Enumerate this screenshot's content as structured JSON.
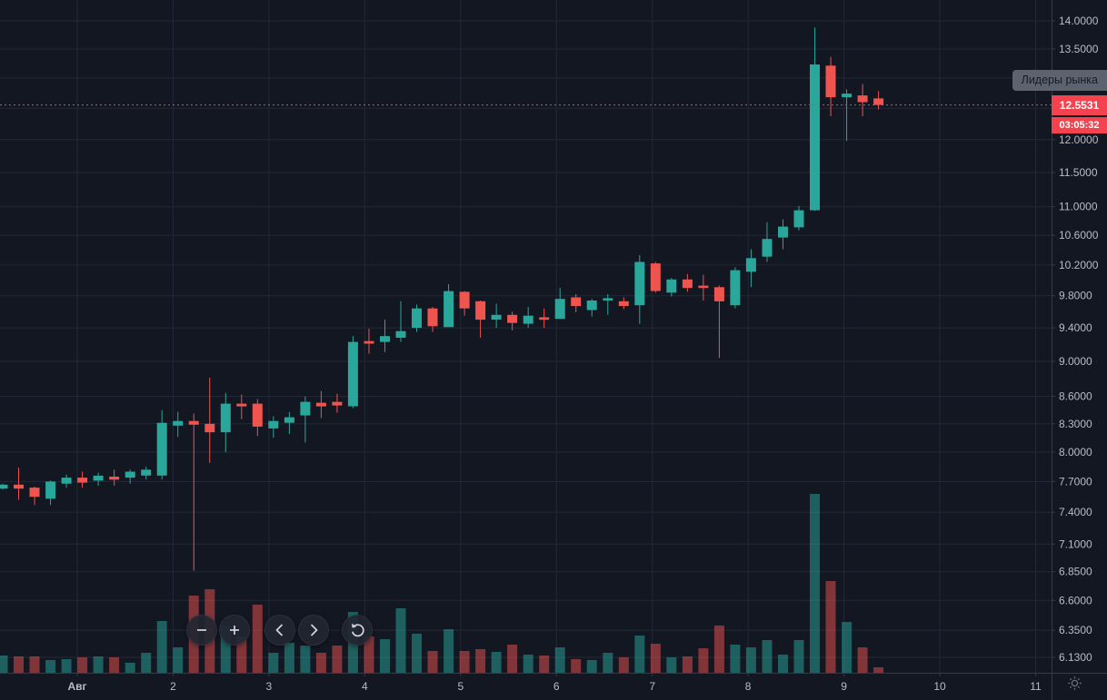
{
  "tooltip": {
    "text": "Лидеры рынка",
    "bg": "#5d636e",
    "text_color": "#171b26"
  },
  "price_line": {
    "label": "12.5531",
    "countdown": "03:05:32",
    "value": 12.5531,
    "color": "#f4434f"
  },
  "nav": {
    "buttons": [
      {
        "name": "zoom-out",
        "icon": "minus"
      },
      {
        "name": "zoom-in",
        "icon": "plus"
      },
      {
        "name": "scroll-left",
        "icon": "chevron-left"
      },
      {
        "name": "scroll-right",
        "icon": "chevron-right"
      },
      {
        "name": "reset-view",
        "icon": "rotate-ccw"
      }
    ]
  },
  "price_axis": {
    "ticks": [
      {
        "label": "14.0000",
        "value": 14.0
      },
      {
        "label": "13.5000",
        "value": 13.5
      },
      {
        "label": "13.0000",
        "value": 13.0
      },
      {
        "label": "12.5000",
        "value": 12.5
      },
      {
        "label": "12.0000",
        "value": 12.0
      },
      {
        "label": "11.5000",
        "value": 11.5
      },
      {
        "label": "11.0000",
        "value": 11.0
      },
      {
        "label": "10.6000",
        "value": 10.6
      },
      {
        "label": "10.2000",
        "value": 10.2
      },
      {
        "label": "9.8000",
        "value": 9.8
      },
      {
        "label": "9.4000",
        "value": 9.4
      },
      {
        "label": "9.0000",
        "value": 9.0
      },
      {
        "label": "8.6000",
        "value": 8.6
      },
      {
        "label": "8.3000",
        "value": 8.3
      },
      {
        "label": "8.0000",
        "value": 8.0
      },
      {
        "label": "7.7000",
        "value": 7.7
      },
      {
        "label": "7.4000",
        "value": 7.4
      },
      {
        "label": "7.1000",
        "value": 7.1
      },
      {
        "label": "6.8500",
        "value": 6.85
      },
      {
        "label": "6.6000",
        "value": 6.6
      },
      {
        "label": "6.3500",
        "value": 6.35
      },
      {
        "label": "6.1300",
        "value": 6.13
      }
    ]
  },
  "time_axis": {
    "labels": [
      "Авг",
      "2",
      "3",
      "4",
      "5",
      "6",
      "7",
      "8",
      "9",
      "10",
      "11"
    ]
  },
  "colors": {
    "background": "#131722",
    "grid": "#232838",
    "axis_border": "#363a45",
    "axis_text": "#b8bcc6",
    "up": "#2aa79b",
    "down": "#f0544f",
    "volume_up": "rgba(42,167,155,0.5)",
    "volume_down": "rgba(240,84,79,0.5)",
    "icon": "#d3d6de",
    "gear": "#6a6e79"
  },
  "chart_data": {
    "type": "candlestick",
    "scale": "log",
    "title": "",
    "interval": "4h",
    "legend_position": "none",
    "grid": true,
    "x_labels": [
      "Авг",
      "2",
      "3",
      "4",
      "5",
      "6",
      "7",
      "8",
      "9",
      "10",
      "11"
    ],
    "y_ticks": [
      14.0,
      13.5,
      13.0,
      12.5,
      12.0,
      11.5,
      11.0,
      10.6,
      10.2,
      9.8,
      9.4,
      9.0,
      8.6,
      8.3,
      8.0,
      7.7,
      7.4,
      7.1,
      6.85,
      6.6,
      6.35,
      6.13
    ],
    "current_price": 12.5531,
    "bar_countdown": "03:05:32",
    "ohlcv_order": [
      "open",
      "high",
      "low",
      "close",
      "volume"
    ],
    "candles": [
      [
        7.63,
        7.68,
        7.62,
        7.67,
        19
      ],
      [
        7.67,
        7.84,
        7.52,
        7.63,
        18
      ],
      [
        7.64,
        7.65,
        7.47,
        7.55,
        18
      ],
      [
        7.53,
        7.71,
        7.47,
        7.7,
        14
      ],
      [
        7.68,
        7.77,
        7.64,
        7.74,
        15
      ],
      [
        7.74,
        7.8,
        7.64,
        7.69,
        17
      ],
      [
        7.71,
        7.79,
        7.66,
        7.76,
        18
      ],
      [
        7.75,
        7.82,
        7.66,
        7.72,
        17
      ],
      [
        7.74,
        7.82,
        7.68,
        7.8,
        11
      ],
      [
        7.76,
        7.85,
        7.72,
        7.82,
        22
      ],
      [
        7.76,
        8.45,
        7.72,
        8.31,
        57
      ],
      [
        8.28,
        8.43,
        8.16,
        8.33,
        28
      ],
      [
        8.33,
        8.41,
        6.86,
        8.29,
        85
      ],
      [
        8.3,
        8.81,
        7.89,
        8.21,
        92
      ],
      [
        8.21,
        8.64,
        8.0,
        8.52,
        52
      ],
      [
        8.52,
        8.62,
        8.35,
        8.49,
        40
      ],
      [
        8.52,
        8.57,
        8.17,
        8.27,
        75
      ],
      [
        8.25,
        8.38,
        8.15,
        8.33,
        22
      ],
      [
        8.31,
        8.43,
        8.19,
        8.37,
        33
      ],
      [
        8.39,
        8.6,
        8.1,
        8.54,
        30
      ],
      [
        8.53,
        8.66,
        8.36,
        8.49,
        22
      ],
      [
        8.54,
        8.63,
        8.42,
        8.5,
        30
      ],
      [
        8.49,
        9.3,
        8.47,
        9.23,
        67
      ],
      [
        9.24,
        9.39,
        9.09,
        9.21,
        40
      ],
      [
        9.23,
        9.5,
        9.11,
        9.3,
        37
      ],
      [
        9.28,
        9.73,
        9.23,
        9.36,
        71
      ],
      [
        9.4,
        9.69,
        9.35,
        9.64,
        43
      ],
      [
        9.64,
        9.66,
        9.35,
        9.42,
        24
      ],
      [
        9.41,
        9.95,
        9.41,
        9.86,
        48
      ],
      [
        9.85,
        9.86,
        9.55,
        9.64,
        24
      ],
      [
        9.73,
        9.74,
        9.28,
        9.5,
        26
      ],
      [
        9.5,
        9.7,
        9.4,
        9.56,
        23
      ],
      [
        9.56,
        9.6,
        9.37,
        9.46,
        31
      ],
      [
        9.45,
        9.66,
        9.4,
        9.55,
        20
      ],
      [
        9.53,
        9.64,
        9.4,
        9.5,
        19
      ],
      [
        9.51,
        9.9,
        9.51,
        9.76,
        28
      ],
      [
        9.78,
        9.82,
        9.59,
        9.67,
        15
      ],
      [
        9.62,
        9.76,
        9.54,
        9.74,
        14
      ],
      [
        9.74,
        9.82,
        9.56,
        9.77,
        22
      ],
      [
        9.73,
        9.78,
        9.63,
        9.67,
        17
      ],
      [
        9.68,
        10.33,
        9.45,
        10.24,
        41
      ],
      [
        10.22,
        10.24,
        9.84,
        9.86,
        32
      ],
      [
        9.84,
        10.03,
        9.79,
        10.01,
        17
      ],
      [
        10.01,
        10.08,
        9.85,
        9.9,
        18
      ],
      [
        9.93,
        10.07,
        9.74,
        9.9,
        27
      ],
      [
        9.91,
        9.93,
        9.04,
        9.73,
        52
      ],
      [
        9.68,
        10.17,
        9.64,
        10.13,
        31
      ],
      [
        10.11,
        10.41,
        9.91,
        10.29,
        28
      ],
      [
        10.31,
        10.78,
        10.24,
        10.55,
        36
      ],
      [
        10.57,
        10.82,
        10.41,
        10.72,
        20
      ],
      [
        10.71,
        11.01,
        10.67,
        10.95,
        36
      ],
      [
        10.95,
        13.88,
        10.94,
        13.23,
        197
      ],
      [
        13.21,
        13.36,
        12.37,
        12.68,
        101
      ],
      [
        12.68,
        12.81,
        11.98,
        12.74,
        56
      ],
      [
        12.71,
        12.9,
        12.37,
        12.6,
        28
      ],
      [
        12.66,
        12.78,
        12.48,
        12.5531,
        6
      ]
    ]
  }
}
